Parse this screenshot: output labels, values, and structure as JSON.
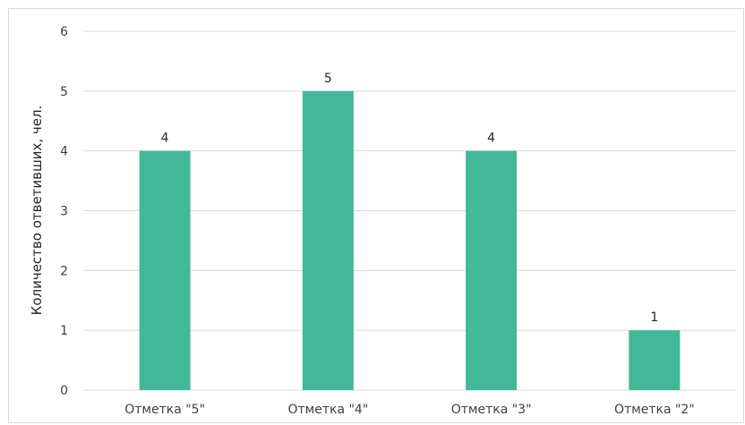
{
  "chart_data": {
    "type": "bar",
    "title": "",
    "xlabel": "",
    "ylabel": "Количество ответивших, чел.",
    "categories": [
      "Отметка \"5\"",
      "Отметка \"4\"",
      "Отметка \"3\"",
      "Отметка \"2\""
    ],
    "values": [
      4,
      5,
      4,
      1
    ],
    "ylim": [
      0,
      6
    ],
    "yticks": [
      0,
      1,
      2,
      3,
      4,
      5,
      6
    ],
    "grid": true,
    "legend": "none",
    "data_labels": true,
    "bar_color": "#43b896",
    "grid_color": "#d9d9d9"
  }
}
